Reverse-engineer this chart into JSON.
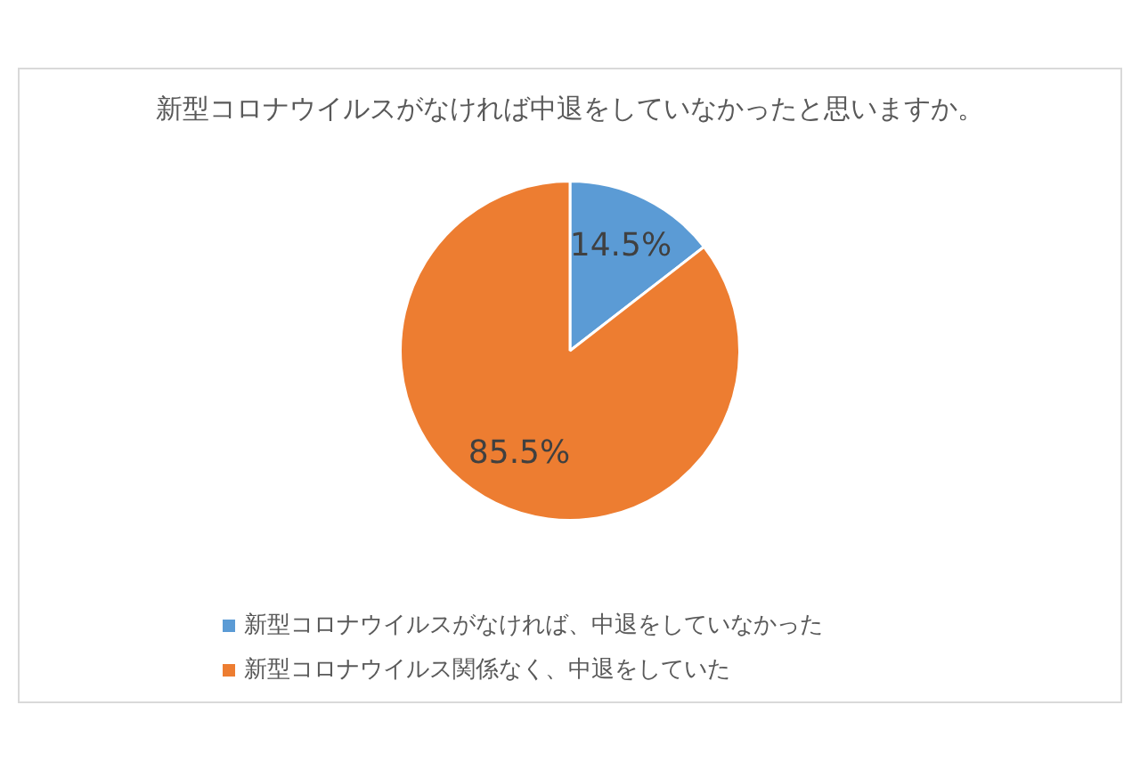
{
  "chart_data": {
    "type": "pie",
    "title": "新型コロナウイルスがなければ中退をしていなかったと思いますか。",
    "categories": [
      "新型コロナウイルスがなければ、中退をしていなかった",
      "新型コロナウイルス関係なく、中退をしていた"
    ],
    "values": [
      14.5,
      85.5
    ],
    "colors": [
      "#5b9bd5",
      "#ed7d31"
    ],
    "value_labels": [
      "14.5%",
      "85.5%"
    ],
    "legend": "bottom"
  }
}
